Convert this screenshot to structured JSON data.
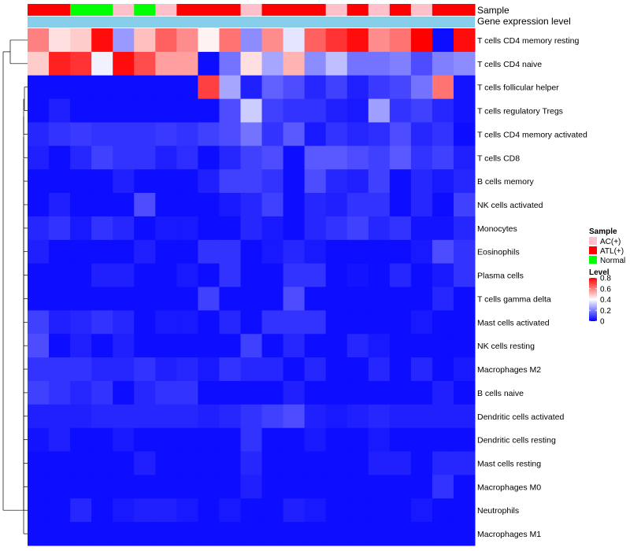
{
  "chart_data": {
    "type": "heatmap",
    "annotation_tracks": [
      "Sample",
      "Gene expression level"
    ],
    "sample_annotation": [
      "ATL(+)",
      "ATL(+)",
      "Normal",
      "Normal",
      "AC(+)",
      "Normal",
      "AC(+)",
      "ATL(+)",
      "ATL(+)",
      "ATL(+)",
      "AC(+)",
      "ATL(+)",
      "ATL(+)",
      "ATL(+)",
      "AC(+)",
      "ATL(+)",
      "AC(+)",
      "ATL(+)",
      "AC(+)",
      "ATL(+)",
      "ATL(+)"
    ],
    "rows": [
      "T cells CD4 memory resting",
      "T cells CD4 naive",
      "T cells follicular helper",
      "T cells regulatory  Tregs",
      "T cells CD4 memory activated",
      "T cells CD8",
      "B cells memory",
      "NK cells activated",
      "Monocytes",
      "Eosinophils",
      "Plasma cells",
      "T cells gamma delta",
      "Mast cells activated",
      "NK cells resting",
      "Macrophages M2",
      "B cells naive",
      "Dendritic cells activated",
      "Dendritic cells resting",
      "Mast cells resting",
      "Macrophages M0",
      "Neutrophils",
      "Macrophages M1"
    ],
    "values": [
      [
        0.6,
        0.45,
        0.48,
        0.78,
        0.24,
        0.5,
        0.65,
        0.58,
        0.42,
        0.62,
        0.22,
        0.58,
        0.36,
        0.65,
        0.72,
        0.78,
        0.58,
        0.62,
        0.8,
        0.02,
        0.78
      ],
      [
        0.48,
        0.75,
        0.72,
        0.38,
        0.78,
        0.68,
        0.55,
        0.55,
        0.02,
        0.18,
        0.45,
        0.26,
        0.52,
        0.22,
        0.3,
        0.18,
        0.18,
        0.2,
        0.12,
        0.2,
        0.22
      ],
      [
        0.02,
        0.02,
        0.02,
        0.02,
        0.02,
        0.02,
        0.02,
        0.02,
        0.7,
        0.26,
        0.05,
        0.15,
        0.12,
        0.06,
        0.1,
        0.05,
        0.09,
        0.11,
        0.18,
        0.62,
        0.03
      ],
      [
        0.02,
        0.05,
        0.02,
        0.02,
        0.02,
        0.02,
        0.02,
        0.02,
        0.02,
        0.12,
        0.32,
        0.1,
        0.08,
        0.08,
        0.05,
        0.04,
        0.25,
        0.08,
        0.1,
        0.06,
        0.03
      ],
      [
        0.06,
        0.08,
        0.09,
        0.08,
        0.08,
        0.08,
        0.09,
        0.08,
        0.1,
        0.12,
        0.18,
        0.08,
        0.14,
        0.04,
        0.08,
        0.06,
        0.07,
        0.12,
        0.06,
        0.08,
        0.02
      ],
      [
        0.05,
        0.02,
        0.06,
        0.1,
        0.08,
        0.08,
        0.05,
        0.07,
        0.02,
        0.06,
        0.1,
        0.12,
        0.02,
        0.14,
        0.14,
        0.12,
        0.1,
        0.14,
        0.08,
        0.1,
        0.05
      ],
      [
        0.02,
        0.02,
        0.02,
        0.02,
        0.05,
        0.02,
        0.02,
        0.02,
        0.05,
        0.1,
        0.1,
        0.08,
        0.02,
        0.12,
        0.06,
        0.05,
        0.1,
        0.02,
        0.06,
        0.04,
        0.06
      ],
      [
        0.02,
        0.05,
        0.02,
        0.02,
        0.02,
        0.12,
        0.02,
        0.02,
        0.02,
        0.04,
        0.06,
        0.1,
        0.02,
        0.06,
        0.05,
        0.08,
        0.08,
        0.02,
        0.06,
        0.02,
        0.1
      ],
      [
        0.06,
        0.08,
        0.04,
        0.08,
        0.06,
        0.02,
        0.04,
        0.04,
        0.02,
        0.02,
        0.06,
        0.04,
        0.02,
        0.06,
        0.08,
        0.1,
        0.06,
        0.08,
        0.03,
        0.03,
        0.06
      ],
      [
        0.05,
        0.02,
        0.02,
        0.02,
        0.02,
        0.05,
        0.02,
        0.02,
        0.08,
        0.08,
        0.02,
        0.04,
        0.06,
        0.04,
        0.02,
        0.02,
        0.02,
        0.02,
        0.04,
        0.12,
        0.08
      ],
      [
        0.02,
        0.02,
        0.02,
        0.05,
        0.05,
        0.02,
        0.02,
        0.04,
        0.02,
        0.08,
        0.02,
        0.02,
        0.08,
        0.08,
        0.02,
        0.03,
        0.02,
        0.06,
        0.02,
        0.04,
        0.08
      ],
      [
        0.02,
        0.02,
        0.02,
        0.02,
        0.02,
        0.02,
        0.02,
        0.02,
        0.1,
        0.02,
        0.02,
        0.02,
        0.12,
        0.02,
        0.02,
        0.02,
        0.02,
        0.02,
        0.02,
        0.06,
        0.02
      ],
      [
        0.1,
        0.05,
        0.06,
        0.08,
        0.06,
        0.02,
        0.04,
        0.04,
        0.02,
        0.06,
        0.02,
        0.08,
        0.08,
        0.08,
        0.02,
        0.02,
        0.02,
        0.02,
        0.04,
        0.02,
        0.02
      ],
      [
        0.12,
        0.02,
        0.05,
        0.02,
        0.05,
        0.02,
        0.02,
        0.02,
        0.02,
        0.02,
        0.1,
        0.02,
        0.06,
        0.02,
        0.02,
        0.06,
        0.04,
        0.02,
        0.02,
        0.02,
        0.02
      ],
      [
        0.08,
        0.08,
        0.08,
        0.06,
        0.06,
        0.08,
        0.05,
        0.06,
        0.04,
        0.08,
        0.06,
        0.06,
        0.02,
        0.06,
        0.02,
        0.02,
        0.06,
        0.02,
        0.06,
        0.02,
        0.04
      ],
      [
        0.1,
        0.08,
        0.06,
        0.08,
        0.02,
        0.06,
        0.08,
        0.08,
        0.02,
        0.02,
        0.02,
        0.02,
        0.05,
        0.02,
        0.02,
        0.02,
        0.02,
        0.02,
        0.02,
        0.05,
        0.02
      ],
      [
        0.05,
        0.05,
        0.05,
        0.06,
        0.06,
        0.06,
        0.06,
        0.06,
        0.05,
        0.06,
        0.08,
        0.1,
        0.12,
        0.05,
        0.04,
        0.05,
        0.06,
        0.05,
        0.05,
        0.05,
        0.05
      ],
      [
        0.03,
        0.05,
        0.02,
        0.02,
        0.04,
        0.02,
        0.02,
        0.02,
        0.02,
        0.02,
        0.08,
        0.02,
        0.02,
        0.04,
        0.02,
        0.02,
        0.04,
        0.02,
        0.02,
        0.02,
        0.02
      ],
      [
        0.02,
        0.02,
        0.02,
        0.02,
        0.02,
        0.05,
        0.02,
        0.02,
        0.02,
        0.02,
        0.06,
        0.02,
        0.02,
        0.02,
        0.02,
        0.02,
        0.05,
        0.05,
        0.02,
        0.06,
        0.06
      ],
      [
        0.02,
        0.02,
        0.02,
        0.02,
        0.02,
        0.02,
        0.02,
        0.02,
        0.02,
        0.02,
        0.05,
        0.02,
        0.02,
        0.02,
        0.02,
        0.02,
        0.02,
        0.02,
        0.02,
        0.08,
        0.02
      ],
      [
        0.02,
        0.02,
        0.06,
        0.02,
        0.04,
        0.05,
        0.05,
        0.04,
        0.02,
        0.04,
        0.02,
        0.02,
        0.05,
        0.04,
        0.02,
        0.02,
        0.02,
        0.02,
        0.04,
        0.02,
        0.02
      ],
      [
        0.02,
        0.02,
        0.02,
        0.02,
        0.02,
        0.02,
        0.02,
        0.02,
        0.02,
        0.02,
        0.02,
        0.02,
        0.02,
        0.02,
        0.02,
        0.02,
        0.02,
        0.02,
        0.02,
        0.02,
        0.02
      ]
    ],
    "value_range": [
      0,
      0.8
    ],
    "color_scale": [
      "#0000FF",
      "#FFFFFF",
      "#FF0000"
    ],
    "expression_level_color": "#87CEEB",
    "legend": {
      "sample_title": "Sample",
      "sample_entries": [
        {
          "label": "AC(+)",
          "color": "#FFC0CB"
        },
        {
          "label": "ATL(+)",
          "color": "#FF0000"
        },
        {
          "label": "Normal",
          "color": "#00FF00"
        }
      ],
      "level_title": "Level",
      "level_ticks": [
        {
          "value": 0.8,
          "label": "0.8"
        },
        {
          "value": 0.6,
          "label": "0.6"
        },
        {
          "value": 0.4,
          "label": "0.4"
        },
        {
          "value": 0.2,
          "label": "0.2"
        },
        {
          "value": 0,
          "label": "0"
        }
      ],
      "placement": "right"
    },
    "dendrogram": "rows"
  }
}
